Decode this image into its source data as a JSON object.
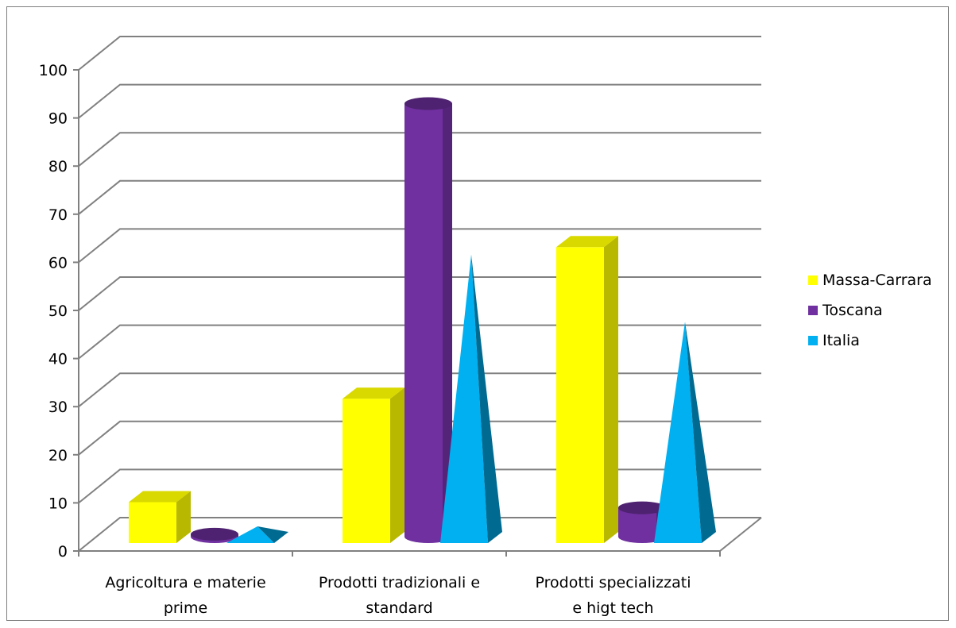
{
  "chart_data": {
    "type": "bar",
    "style": "3d-clustered-column",
    "categories": [
      [
        "Agricoltura e materie",
        "prime"
      ],
      [
        "Prodotti tradizionali e",
        "standard"
      ],
      [
        "Prodotti specializzati",
        "e higt tech"
      ]
    ],
    "series": [
      {
        "name": "Massa-Carrara",
        "shape": "box",
        "color": "#ffff00",
        "values": [
          8.5,
          30,
          61.5
        ]
      },
      {
        "name": "Toscana",
        "shape": "cylinder",
        "color": "#7030a0",
        "values": [
          1.5,
          91,
          7
        ]
      },
      {
        "name": "Italia",
        "shape": "pyramid",
        "color": "#00b0f0",
        "values": [
          0.5,
          57,
          43
        ]
      }
    ],
    "ylim": [
      0,
      100
    ],
    "yticks": [
      "0",
      "10",
      "20",
      "30",
      "40",
      "50",
      "60",
      "70",
      "80",
      "90",
      "100"
    ],
    "grid": true,
    "legend": "right",
    "title": "",
    "xlabel": "",
    "ylabel": ""
  }
}
